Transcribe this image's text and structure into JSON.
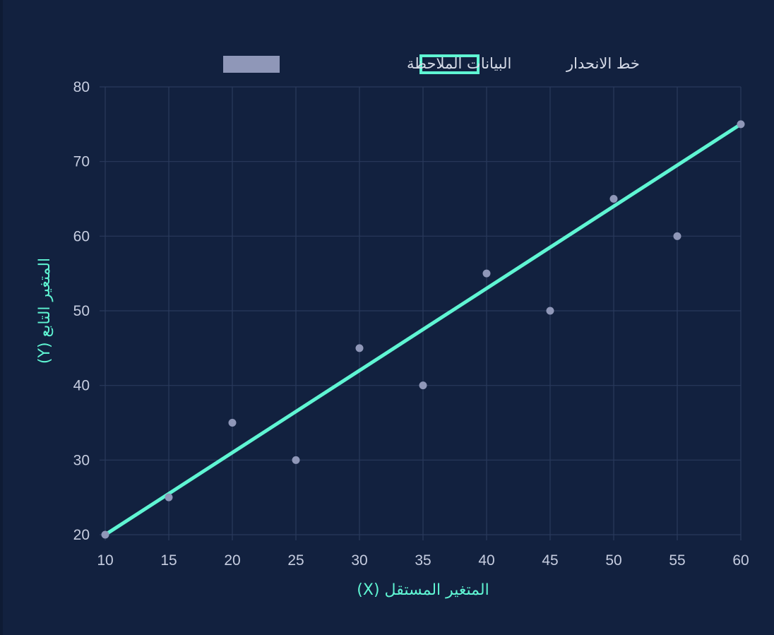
{
  "chart_data": {
    "type": "scatter",
    "legend": {
      "placement": "top-center",
      "items": [
        {
          "label": "خط الانحدار",
          "kind": "line",
          "color": "#5ff5d3"
        },
        {
          "label": "البيانات الملاحظة",
          "kind": "box",
          "color": "#8f97b8"
        }
      ]
    },
    "xlabel": "المتغير المستقل (X)",
    "ylabel": "المتغير التابع (Y)",
    "xlim": [
      10,
      60
    ],
    "ylim": [
      20,
      80
    ],
    "xticks": [
      "10",
      "15",
      "20",
      "25",
      "30",
      "35",
      "40",
      "45",
      "50",
      "55",
      "60"
    ],
    "yticks": [
      "20",
      "30",
      "40",
      "50",
      "60",
      "70",
      "80"
    ],
    "grid": true,
    "series": [
      {
        "name": "البيانات الملاحظة",
        "type": "scatter",
        "color": "#8f97b8",
        "x": [
          10,
          15,
          20,
          25,
          30,
          35,
          40,
          45,
          50,
          55,
          60
        ],
        "y": [
          20,
          25,
          35,
          30,
          45,
          40,
          55,
          50,
          65,
          60,
          75
        ]
      },
      {
        "name": "خط الانحدار",
        "type": "line",
        "color": "#5ff5d3",
        "x": [
          10,
          60
        ],
        "y": [
          20,
          75
        ]
      }
    ]
  }
}
